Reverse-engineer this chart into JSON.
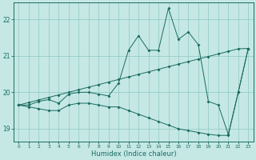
{
  "xlabel": "Humidex (Indice chaleur)",
  "background_color": "#c5e8e5",
  "grid_color": "#8fc8c3",
  "line_color": "#1a6b60",
  "xlim": [
    -0.5,
    23.5
  ],
  "ylim": [
    18.65,
    22.45
  ],
  "yticks": [
    19,
    20,
    21,
    22
  ],
  "xticks": [
    0,
    1,
    2,
    3,
    4,
    5,
    6,
    7,
    8,
    9,
    10,
    11,
    12,
    13,
    14,
    15,
    16,
    17,
    18,
    19,
    20,
    21,
    22,
    23
  ],
  "x_data": [
    0,
    1,
    2,
    3,
    4,
    5,
    6,
    7,
    8,
    9,
    10,
    11,
    12,
    13,
    14,
    15,
    16,
    17,
    18,
    19,
    20,
    21,
    22,
    23
  ],
  "y_main": [
    19.65,
    19.65,
    19.75,
    19.8,
    19.7,
    19.95,
    20.0,
    20.0,
    19.95,
    19.9,
    20.25,
    21.15,
    21.55,
    21.15,
    21.15,
    22.3,
    21.45,
    21.65,
    21.3,
    19.75,
    19.65,
    18.85,
    20.0,
    21.2
  ],
  "y_upper": [
    19.65,
    19.72,
    19.79,
    19.86,
    19.93,
    20.0,
    20.07,
    20.14,
    20.21,
    20.28,
    20.35,
    20.42,
    20.49,
    20.56,
    20.63,
    20.7,
    20.77,
    20.84,
    20.91,
    20.98,
    21.05,
    21.12,
    21.19,
    21.2
  ],
  "y_lower": [
    19.65,
    19.6,
    19.55,
    19.5,
    19.5,
    19.65,
    19.7,
    19.7,
    19.65,
    19.6,
    19.6,
    19.5,
    19.4,
    19.3,
    19.2,
    19.1,
    19.0,
    18.95,
    18.9,
    18.85,
    18.82,
    18.82,
    20.0,
    21.2
  ]
}
